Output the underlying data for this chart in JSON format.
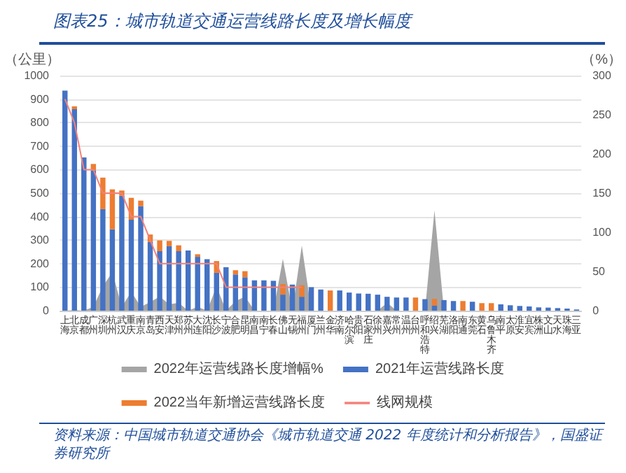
{
  "chart_data": {
    "type": "bar",
    "title": "图表25：城市轨道交通运营线路长度及增长幅度",
    "categories": [
      "上海",
      "北京",
      "成都",
      "广州",
      "深圳",
      "杭州",
      "武汉",
      "重庆",
      "南京",
      "青岛",
      "西安",
      "天津",
      "郑州",
      "苏州",
      "大连",
      "沈阳",
      "长沙",
      "宁波",
      "合肥",
      "昆明",
      "南昌",
      "南宁",
      "长春",
      "佛山",
      "无锡",
      "福州",
      "厦门",
      "兰州",
      "金华",
      "济南",
      "哈尔滨",
      "贵阳",
      "石家庄",
      "徐州",
      "嘉兴",
      "常州",
      "温州",
      "台州",
      "呼和浩特",
      "绍兴",
      "芜湖",
      "洛阳",
      "南通",
      "东莞",
      "黄石",
      "乌鲁木齐",
      "南平",
      "太原",
      "淮安",
      "宜宾",
      "株洲",
      "文山",
      "天水",
      "珠海",
      "三亚"
    ],
    "series": [
      {
        "name": "2022年运营线路长度增幅%",
        "type": "area",
        "axis": "y2",
        "color": "#a5a5a5",
        "values": [
          0,
          1,
          0,
          5,
          31,
          49,
          5,
          24,
          5,
          11,
          18,
          8,
          10,
          0,
          5,
          0,
          31,
          0,
          12,
          18,
          0,
          0,
          0,
          66,
          0,
          83,
          0,
          0,
          0,
          0,
          0,
          0,
          0,
          0,
          10,
          0,
          0,
          0,
          0,
          128,
          0,
          0,
          0,
          0,
          0,
          0,
          0,
          0,
          0,
          0,
          0,
          0,
          0,
          0,
          0
        ]
      },
      {
        "name": "2021年运营线路长度",
        "color": "#4472c4",
        "values": [
          936,
          857,
          652,
          597,
          432,
          346,
          489,
          387,
          444,
          292,
          253,
          274,
          253,
          256,
          229,
          219,
          161,
          185,
          154,
          142,
          129,
          129,
          127,
          68,
          111,
          59,
          100,
          90,
          0,
          86,
          77,
          73,
          72,
          68,
          59,
          56,
          56,
          0,
          49,
          22,
          45,
          41,
          0,
          38,
          0,
          0,
          27,
          23,
          20,
          18,
          14,
          13,
          11,
          9,
          5
        ]
      },
      {
        "name": "2022当年新增运营线路长度",
        "color": "#ed7d31",
        "values": [
          0,
          12,
          0,
          27,
          134,
          170,
          22,
          93,
          24,
          32,
          46,
          23,
          25,
          0,
          11,
          0,
          50,
          0,
          18,
          26,
          0,
          0,
          0,
          45,
          0,
          49,
          0,
          0,
          86,
          0,
          0,
          0,
          0,
          0,
          0,
          0,
          0,
          56,
          0,
          28,
          0,
          0,
          41,
          0,
          32,
          32,
          0,
          0,
          0,
          0,
          0,
          0,
          0,
          0,
          0
        ]
      },
      {
        "name": "线网规模",
        "type": "line",
        "color": "#f4817a",
        "values": [
          900,
          800,
          600,
          600,
          500,
          500,
          500,
          400,
          400,
          300,
          200,
          200,
          200,
          200,
          200,
          200,
          200,
          100,
          100,
          100,
          100,
          100,
          100,
          100,
          100,
          100,
          null,
          null,
          null,
          null,
          null,
          null,
          null,
          null,
          null,
          null,
          null,
          null,
          null,
          null,
          null,
          null,
          null,
          null,
          null,
          null,
          null,
          null,
          null,
          null,
          null,
          null,
          null,
          null,
          null
        ]
      }
    ],
    "stacked": true,
    "ylabel": "（公里）",
    "y2label": "（%）",
    "ylim": [
      0,
      1000
    ],
    "yticks": [
      0,
      100,
      200,
      300,
      400,
      500,
      600,
      700,
      800,
      900,
      1000
    ],
    "y2lim": [
      0,
      300
    ],
    "y2ticks": [
      0,
      50,
      100,
      150,
      200,
      250,
      300
    ],
    "grid": "y",
    "legend": "bottom",
    "marker": "none",
    "annotations": [
      "资料来源：中国城市轨道交通协会《城市轨道交通 2022 年度统计和分析报告》，国盛证券研究所"
    ]
  }
}
